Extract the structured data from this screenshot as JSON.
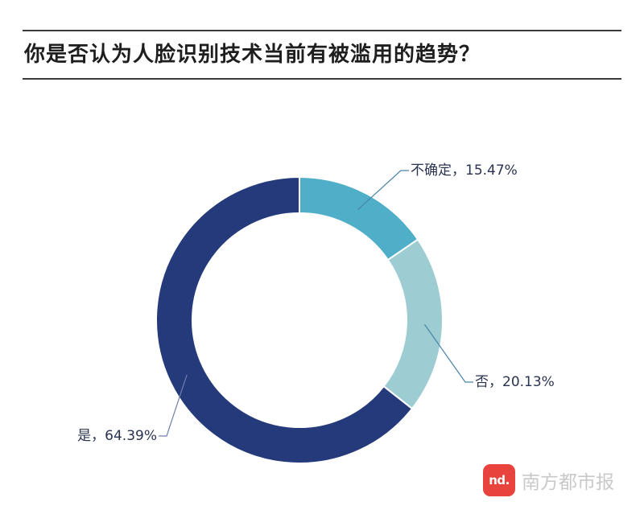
{
  "chart_data": {
    "type": "pie",
    "title": "你是否认为人脸识别技术当前有被滥用的趋势？",
    "donut": true,
    "slices": [
      {
        "name": "不确定",
        "value": 15.47,
        "label": "不确定，15.47%",
        "color": "#4fafc8"
      },
      {
        "name": "否",
        "value": 20.13,
        "label": "否，20.13%",
        "color": "#9dccd3"
      },
      {
        "name": "是",
        "value": 64.39,
        "label": "是，64.39%",
        "color": "#253a7a"
      }
    ]
  },
  "watermark": {
    "badge": "nd.",
    "text": "南方都市报"
  }
}
